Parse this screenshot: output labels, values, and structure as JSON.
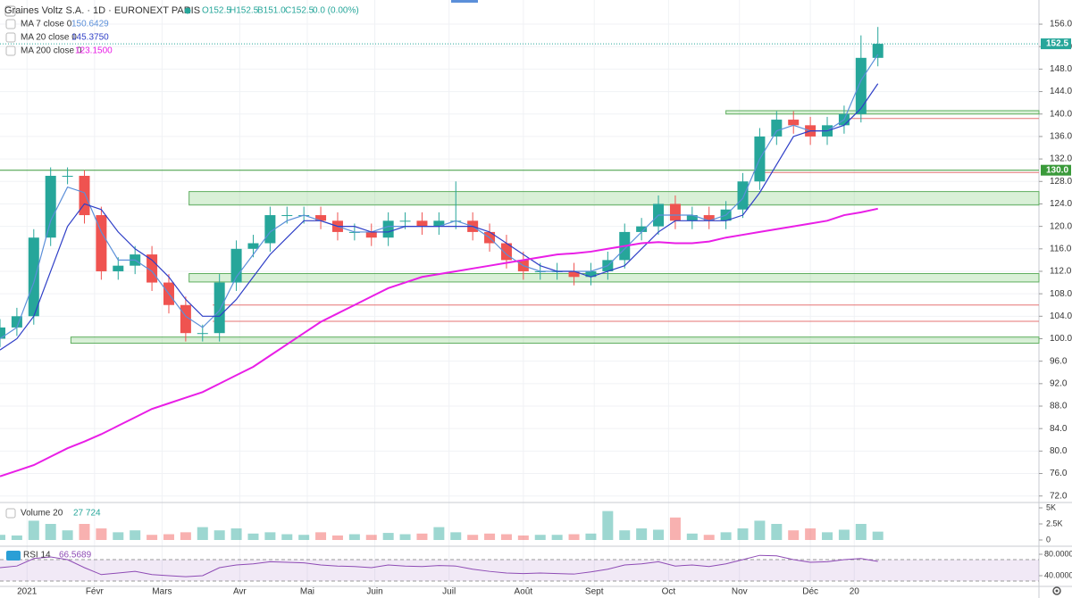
{
  "header": {
    "title": "Graines Voltz S.A. · 1D · EURONEXT PARIS",
    "ohlc": [
      "O152.5",
      "H152.5",
      "B151.0",
      "C152.5",
      "0.0 (0.00%)"
    ]
  },
  "chart_data": [
    {
      "type": "candlestick",
      "x": [
        -8,
        -3,
        2,
        7,
        12,
        17,
        22,
        27,
        32,
        37,
        42,
        47,
        52,
        57,
        62,
        67,
        72,
        77,
        82,
        87,
        92,
        97,
        102,
        107,
        112,
        117,
        122,
        127,
        132,
        137,
        142,
        147,
        152,
        157,
        162,
        167,
        172,
        177,
        182,
        187,
        192,
        197,
        202,
        207,
        212,
        217,
        222,
        227,
        232,
        237,
        242,
        247,
        252
      ],
      "open": [
        100,
        102,
        104,
        118,
        129,
        129,
        122,
        112,
        113,
        115,
        110,
        106,
        101,
        101,
        110,
        116,
        117,
        122,
        122,
        122,
        121,
        119,
        119,
        118,
        121,
        121,
        120,
        121,
        121,
        119,
        117,
        114,
        112,
        112,
        112,
        111,
        112,
        114,
        119,
        120,
        124,
        121,
        122,
        121,
        123,
        128,
        136,
        139,
        138,
        136,
        138,
        140,
        150
      ],
      "high": [
        103.5,
        105.5,
        119.5,
        130.5,
        130.5,
        130,
        123.5,
        114.5,
        116.5,
        116.5,
        111.5,
        107.5,
        102.5,
        111.5,
        117.5,
        118.5,
        123.5,
        123.5,
        123.5,
        123.5,
        122.5,
        120.5,
        120.5,
        122.5,
        122.5,
        122.5,
        122.5,
        128,
        122.5,
        120.5,
        118.5,
        115.5,
        113.5,
        113.5,
        113.5,
        113.5,
        115.5,
        120.5,
        121.5,
        125.5,
        125.5,
        123.5,
        123.5,
        124.5,
        129.5,
        137.5,
        140.5,
        140.5,
        139.5,
        139.5,
        141.5,
        154,
        155.5
      ],
      "low": [
        98.5,
        100.5,
        102.5,
        116.5,
        127.5,
        120.5,
        110.5,
        110.5,
        111.5,
        108.5,
        104.5,
        99.5,
        99.5,
        99.5,
        108.5,
        114.5,
        115.5,
        120.5,
        120.5,
        119.5,
        117.5,
        117.5,
        116.5,
        116.5,
        119.5,
        118.5,
        118.5,
        119.5,
        117.5,
        115.5,
        112.5,
        110.5,
        110.5,
        110.5,
        109.5,
        109.5,
        110.5,
        112.5,
        117.5,
        118.5,
        119.5,
        119.5,
        119.5,
        119.5,
        121.5,
        126.5,
        134.5,
        136.5,
        134.5,
        134.5,
        136.5,
        138.5,
        148.5
      ],
      "close": [
        102,
        104,
        118,
        129,
        129,
        122,
        112,
        113,
        115,
        110,
        106,
        101,
        101,
        110,
        116,
        117,
        122,
        122,
        122,
        121,
        119,
        119,
        118,
        121,
        121,
        120,
        121,
        121,
        119,
        117,
        114,
        112,
        112,
        112,
        111,
        112,
        114,
        119,
        120,
        124,
        121,
        122,
        121,
        123,
        128,
        136,
        139,
        138,
        136,
        138,
        140,
        150,
        152.5
      ],
      "up_color": "#26a69a",
      "down_color": "#ef5350",
      "series": [
        {
          "name": "MA 7 close 0",
          "legend_value": "150.6429",
          "color": "#5b8fd9",
          "values": [
            100,
            102,
            110,
            121,
            127,
            126,
            119,
            114,
            114,
            112,
            108,
            104,
            102,
            105,
            111,
            115,
            119,
            121,
            122,
            121,
            120,
            119,
            119,
            120,
            120,
            120,
            120,
            121,
            120,
            118,
            115,
            113,
            112,
            112,
            112,
            112,
            113,
            116,
            119,
            122,
            122,
            122,
            121,
            122,
            125,
            132,
            137,
            138,
            137,
            137,
            139,
            146,
            150.6
          ]
        },
        {
          "name": "MA 20 close 0",
          "legend_value": "145.3750",
          "color": "#2f3fc7",
          "values": [
            98,
            100,
            104,
            112,
            120,
            124,
            123,
            119,
            116,
            114,
            111,
            107,
            104,
            104,
            107,
            111,
            115,
            118,
            121,
            121,
            120,
            120,
            119,
            119,
            120,
            120,
            120,
            120,
            120,
            119,
            117,
            115,
            113,
            112,
            112,
            111,
            112,
            113,
            116,
            119,
            121,
            121,
            121,
            121,
            122,
            126,
            131,
            136,
            137,
            137,
            138,
            141,
            145.4
          ]
        },
        {
          "name": "MA 200 close 0",
          "legend_value": "123.1500",
          "color": "#e91ee6",
          "values": [
            75.5,
            76.5,
            77.5,
            79,
            80.5,
            81.7,
            83,
            84.5,
            86,
            87.5,
            88.5,
            89.5,
            90.5,
            92,
            93.5,
            95,
            97,
            99,
            101,
            103,
            104.5,
            106,
            107.5,
            109,
            110,
            111,
            111.5,
            112,
            112.5,
            113,
            113.5,
            114,
            114.5,
            115,
            115.2,
            115.5,
            116,
            116.5,
            117,
            117.2,
            117,
            117,
            117.3,
            118,
            118.5,
            119,
            119.5,
            120,
            120.5,
            121,
            122,
            122.5,
            123.15
          ]
        }
      ],
      "zones": [
        {
          "from": 123.8,
          "to": 126.2,
          "start": 48
        },
        {
          "from": 110.1,
          "to": 111.6,
          "start": 48
        },
        {
          "from": 99.2,
          "to": 100.3,
          "start": 13
        },
        {
          "from": 140,
          "to": 140.6,
          "start": 207
        }
      ],
      "lines": [
        {
          "value": 130,
          "start": -8,
          "color": "#3a9a3a",
          "label": "130.0"
        },
        {
          "value": 106,
          "start": 55,
          "color": "#e57373"
        },
        {
          "value": 103.1,
          "start": 55,
          "color": "#e57373"
        },
        {
          "value": 139.2,
          "start": 241,
          "color": "#e57373"
        },
        {
          "value": 129.6,
          "start": 215,
          "color": "#e57373"
        }
      ],
      "last_price": {
        "value": 152.5,
        "label": "152.5"
      },
      "xlim": [
        -8,
        299.7
      ],
      "xticks": [
        {
          "value": 0,
          "label": "2021"
        },
        {
          "value": 20,
          "label": "Févr"
        },
        {
          "value": 40,
          "label": "Mars"
        },
        {
          "value": 63,
          "label": "Avr"
        },
        {
          "value": 83,
          "label": "Mai"
        },
        {
          "value": 103,
          "label": "Juin"
        },
        {
          "value": 125,
          "label": "Juil"
        },
        {
          "value": 147,
          "label": "Août"
        },
        {
          "value": 168,
          "label": "Sept"
        },
        {
          "value": 190,
          "label": "Oct"
        },
        {
          "value": 211,
          "label": "Nov"
        },
        {
          "value": 232,
          "label": "Déc"
        },
        {
          "value": 245,
          "label": "20"
        }
      ],
      "ylim": [
        71,
        160.3
      ],
      "yticks": [
        {
          "value": 72,
          "label": "72.0"
        },
        {
          "value": 76,
          "label": "76.0"
        },
        {
          "value": 80,
          "label": "80.0"
        },
        {
          "value": 84,
          "label": "84.0"
        },
        {
          "value": 88,
          "label": "88.0"
        },
        {
          "value": 92,
          "label": "92.0"
        },
        {
          "value": 96,
          "label": "96.0"
        },
        {
          "value": 100,
          "label": "100.0"
        },
        {
          "value": 104,
          "label": "104.0"
        },
        {
          "value": 108,
          "label": "108.0"
        },
        {
          "value": 112,
          "label": "112.0"
        },
        {
          "value": 116,
          "label": "116.0"
        },
        {
          "value": 120,
          "label": "120.0"
        },
        {
          "value": 124,
          "label": "124.0"
        },
        {
          "value": 128,
          "label": "128.0"
        },
        {
          "value": 132,
          "label": "132.0"
        },
        {
          "value": 136,
          "label": "136.0"
        },
        {
          "value": 140,
          "label": "140.0"
        },
        {
          "value": 144,
          "label": "144.0"
        },
        {
          "value": 148,
          "label": "148.0"
        },
        {
          "value": 152,
          "label": "152.0"
        },
        {
          "value": 156,
          "label": "156.0"
        }
      ],
      "grid": true
    },
    {
      "type": "bar",
      "title": "Volume 20",
      "legend_value": "27 724",
      "values": [
        800,
        700,
        3000,
        2500,
        1500,
        2500,
        1800,
        1200,
        1500,
        800,
        900,
        1200,
        2000,
        1500,
        1800,
        1000,
        1200,
        900,
        800,
        1200,
        700,
        900,
        800,
        1100,
        900,
        1000,
        2000,
        1200,
        800,
        1000,
        900,
        700,
        800,
        800,
        900,
        1000,
        4500,
        1500,
        1800,
        1600,
        3500,
        1000,
        800,
        1200,
        1800,
        3000,
        2500,
        1500,
        1800,
        1200,
        1600,
        2500,
        1300
      ],
      "ylim": [
        0,
        5000
      ],
      "yticks": [
        {
          "value": 5000,
          "label": "5K"
        },
        {
          "value": 2500,
          "label": "2.5K"
        },
        0
      ]
    },
    {
      "type": "line",
      "title": "RSI 14",
      "legend_value": "66.5689",
      "color": "#8e4bb5",
      "values": [
        55,
        58,
        72,
        75,
        70,
        55,
        42,
        45,
        48,
        42,
        40,
        38,
        40,
        55,
        60,
        62,
        66,
        65,
        64,
        60,
        58,
        57,
        55,
        60,
        58,
        57,
        59,
        58,
        52,
        48,
        45,
        44,
        45,
        44,
        43,
        47,
        52,
        60,
        62,
        66,
        58,
        60,
        57,
        62,
        70,
        78,
        77,
        70,
        65,
        66,
        70,
        72,
        66.57
      ],
      "band": [
        30,
        70
      ],
      "ylim": [
        23.3,
        90
      ],
      "yticks": [
        {
          "value": 80,
          "label": "80.0000"
        },
        {
          "value": 40,
          "label": "40.0000"
        }
      ]
    }
  ]
}
